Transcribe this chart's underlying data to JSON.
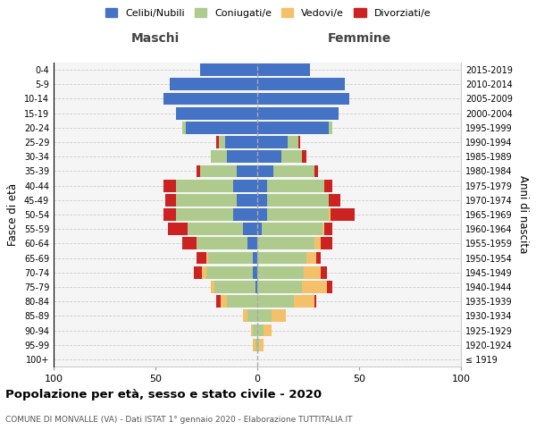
{
  "age_groups": [
    "100+",
    "95-99",
    "90-94",
    "85-89",
    "80-84",
    "75-79",
    "70-74",
    "65-69",
    "60-64",
    "55-59",
    "50-54",
    "45-49",
    "40-44",
    "35-39",
    "30-34",
    "25-29",
    "20-24",
    "15-19",
    "10-14",
    "5-9",
    "0-4"
  ],
  "birth_years": [
    "≤ 1919",
    "1920-1924",
    "1925-1929",
    "1930-1934",
    "1935-1939",
    "1940-1944",
    "1945-1949",
    "1950-1954",
    "1955-1959",
    "1960-1964",
    "1965-1969",
    "1970-1974",
    "1975-1979",
    "1980-1984",
    "1985-1989",
    "1990-1994",
    "1995-1999",
    "2000-2004",
    "2005-2009",
    "2010-2014",
    "2015-2019"
  ],
  "colors": {
    "celibe": "#4472C4",
    "coniugato": "#AECB8D",
    "vedovo": "#F5C06A",
    "divorziato": "#CC2222"
  },
  "maschi": {
    "celibe": [
      0,
      0,
      0,
      0,
      0,
      1,
      2,
      2,
      5,
      7,
      12,
      10,
      12,
      10,
      15,
      16,
      35,
      40,
      46,
      43,
      28
    ],
    "coniugato": [
      0,
      1,
      2,
      5,
      15,
      20,
      23,
      22,
      25,
      27,
      28,
      30,
      28,
      18,
      8,
      3,
      2,
      0,
      0,
      0,
      0
    ],
    "vedovo": [
      0,
      1,
      1,
      2,
      3,
      2,
      2,
      1,
      0,
      0,
      0,
      0,
      0,
      0,
      0,
      0,
      0,
      0,
      0,
      0,
      0
    ],
    "divorziato": [
      0,
      0,
      0,
      0,
      2,
      0,
      4,
      5,
      7,
      10,
      6,
      5,
      6,
      2,
      0,
      1,
      0,
      0,
      0,
      0,
      0
    ]
  },
  "femmine": {
    "celibe": [
      0,
      0,
      0,
      0,
      0,
      0,
      0,
      0,
      0,
      2,
      5,
      5,
      5,
      8,
      12,
      15,
      35,
      40,
      45,
      43,
      26
    ],
    "coniugato": [
      0,
      1,
      3,
      7,
      18,
      22,
      23,
      24,
      28,
      30,
      30,
      30,
      28,
      20,
      10,
      5,
      2,
      0,
      0,
      0,
      0
    ],
    "vedovo": [
      0,
      2,
      4,
      7,
      10,
      12,
      8,
      5,
      3,
      1,
      1,
      0,
      0,
      0,
      0,
      0,
      0,
      0,
      0,
      0,
      0
    ],
    "divorziato": [
      0,
      0,
      0,
      0,
      1,
      3,
      3,
      2,
      6,
      4,
      12,
      6,
      4,
      2,
      2,
      1,
      0,
      0,
      0,
      0,
      0
    ]
  },
  "title": "Popolazione per età, sesso e stato civile - 2020",
  "subtitle": "COMUNE DI MONVALLE (VA) - Dati ISTAT 1° gennaio 2020 - Elaborazione TUTTITALIA.IT",
  "xlabel_left": "Maschi",
  "xlabel_right": "Femmine",
  "xlim": [
    -100,
    100
  ],
  "legend_labels": [
    "Celibi/Nubili",
    "Coniugati/e",
    "Vedovi/e",
    "Divorziati/e"
  ],
  "ylabel_left": "Fasce di età",
  "ylabel_right": "Anni di nascita",
  "background_color": "#f5f5f5"
}
